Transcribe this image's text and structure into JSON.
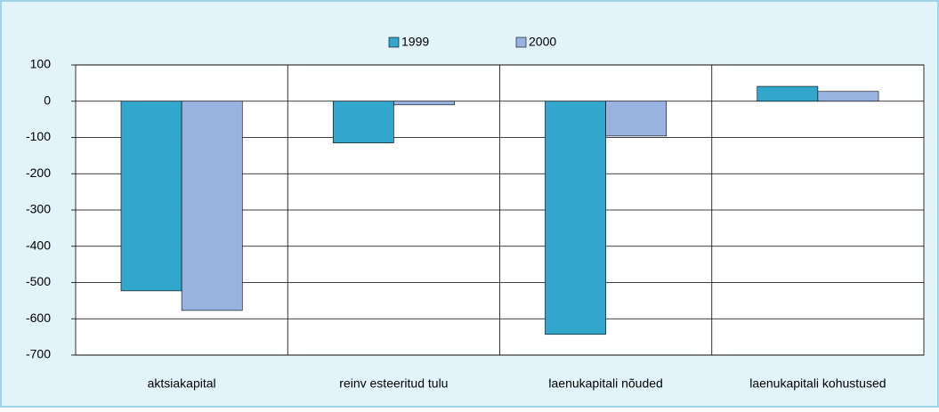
{
  "chart_data": {
    "type": "bar",
    "categories": [
      "aktsiakapital",
      "reinv esteeritud tulu",
      "laenukapitali nõuded",
      "laenukapitali kohustused"
    ],
    "series": [
      {
        "name": "1999",
        "color": "#33a6cc",
        "values": [
          -523,
          -115,
          -643,
          41
        ]
      },
      {
        "name": "2000",
        "color": "#99b3e0",
        "values": [
          -577,
          -10,
          -96,
          27
        ]
      }
    ],
    "ylim": [
      -700,
      100
    ],
    "yticks": [
      -700,
      -600,
      -500,
      -400,
      -300,
      -200,
      -100,
      0,
      100
    ],
    "grid": true,
    "legend": "top"
  }
}
